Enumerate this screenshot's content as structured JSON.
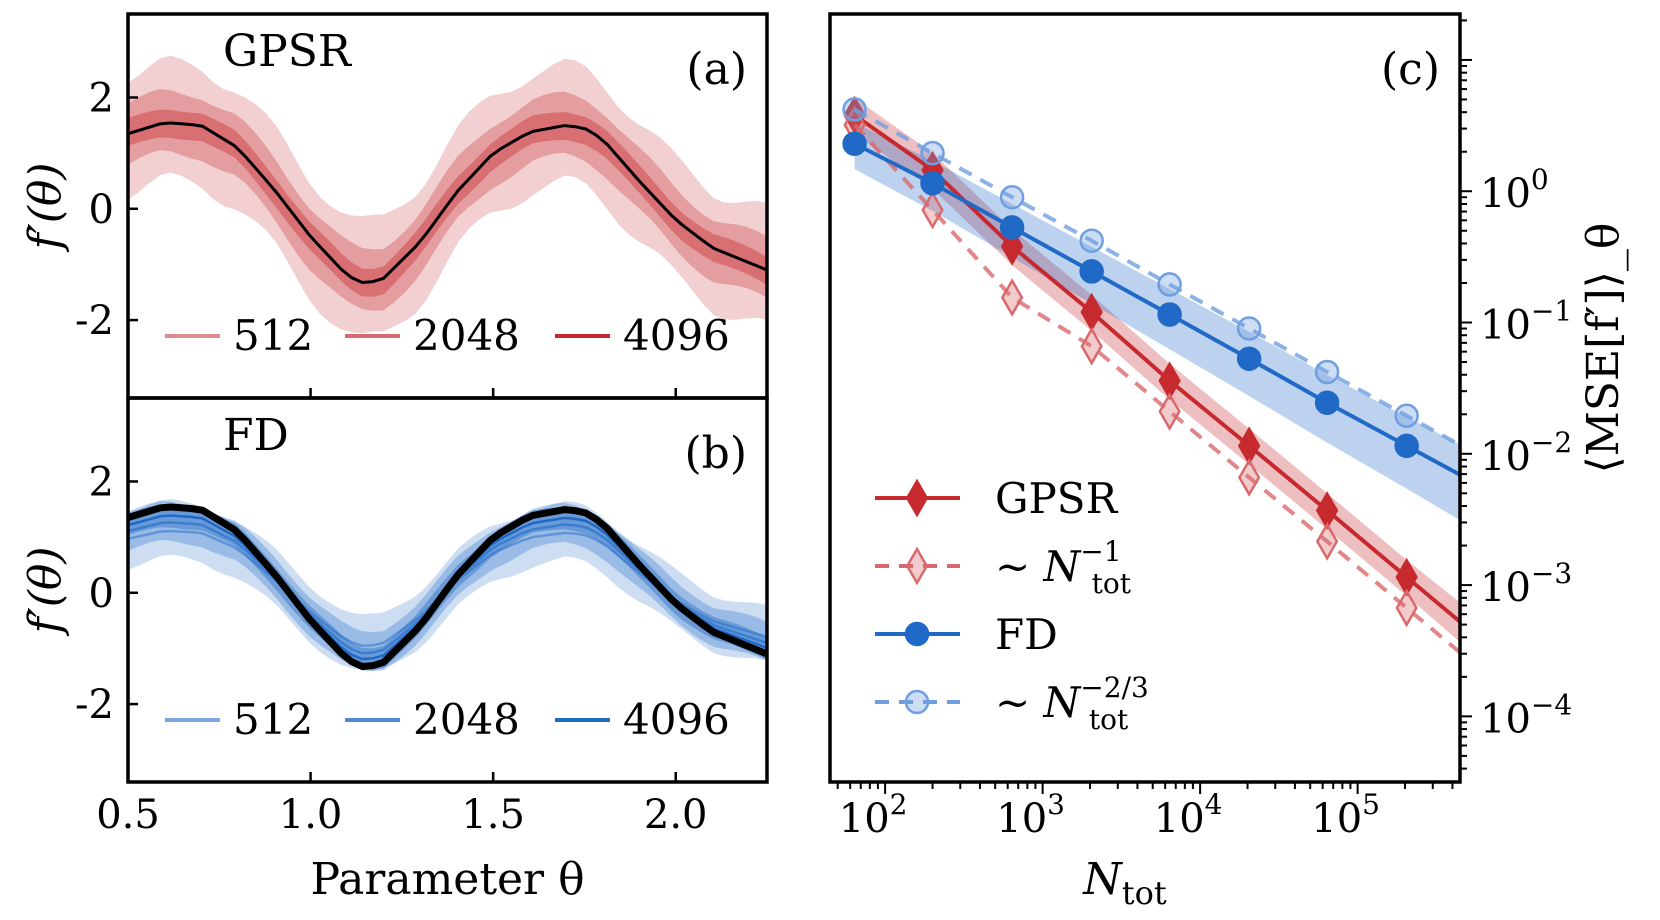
{
  "chart_data": [
    {
      "id": "a",
      "type": "line",
      "panel_label": "(a)",
      "title": "GPSR",
      "xlabel": "",
      "ylabel": "f′(θ)",
      "xlim": [
        0.5,
        2.25
      ],
      "ylim": [
        -3.4,
        3.5
      ],
      "xticks": [
        0.5,
        1.0,
        1.5,
        2.0
      ],
      "xtick_labels": [
        "",
        "",
        "",
        ""
      ],
      "yticks": [
        -2,
        0,
        2
      ],
      "ytick_labels": [
        "-2",
        "0",
        "2"
      ],
      "color": "#c62a2f",
      "true_curve": {
        "x": [
          0.5,
          0.6,
          0.7,
          0.8,
          0.9,
          1.0,
          1.1,
          1.15,
          1.2,
          1.3,
          1.4,
          1.5,
          1.6,
          1.7,
          1.75,
          1.8,
          1.9,
          2.0,
          2.1,
          2.25
        ],
        "y": [
          1.35,
          1.55,
          1.5,
          1.1,
          0.35,
          -0.5,
          -1.2,
          -1.35,
          -1.25,
          -0.6,
          0.3,
          1.0,
          1.38,
          1.5,
          1.45,
          1.25,
          0.5,
          -0.2,
          -0.7,
          -1.1
        ]
      },
      "series": [
        {
          "name": "512",
          "band_halfwidth": 1.05,
          "opacity": 0.22
        },
        {
          "name": "2048",
          "band_halfwidth": 0.55,
          "opacity": 0.3
        },
        {
          "name": "4096",
          "band_halfwidth": 0.25,
          "opacity": 0.4
        }
      ],
      "legend": [
        "512",
        "2048",
        "4096"
      ],
      "legend_colors": [
        "#e08c8f",
        "#d9696d",
        "#c62a2f"
      ]
    },
    {
      "id": "b",
      "type": "line",
      "panel_label": "(b)",
      "title": "FD",
      "xlabel": "Parameter θ",
      "ylabel": "f′(θ)",
      "xlim": [
        0.5,
        2.25
      ],
      "ylim": [
        -3.4,
        3.5
      ],
      "xticks": [
        0.5,
        1.0,
        1.5,
        2.0
      ],
      "xtick_labels": [
        "0.5",
        "1.0",
        "1.5",
        "2.0"
      ],
      "yticks": [
        -2,
        0,
        2
      ],
      "ytick_labels": [
        "-2",
        "0",
        "2"
      ],
      "color": "#2069c6",
      "true_curve": {
        "x": [
          0.5,
          0.6,
          0.7,
          0.8,
          0.9,
          1.0,
          1.1,
          1.15,
          1.2,
          1.3,
          1.4,
          1.5,
          1.6,
          1.7,
          1.75,
          1.8,
          1.9,
          2.0,
          2.1,
          2.25
        ],
        "y": [
          1.35,
          1.55,
          1.5,
          1.1,
          0.35,
          -0.5,
          -1.2,
          -1.35,
          -1.25,
          -0.6,
          0.3,
          1.0,
          1.38,
          1.5,
          1.45,
          1.25,
          0.5,
          -0.2,
          -0.7,
          -1.1
        ]
      },
      "series": [
        {
          "name": "512",
          "band_halfwidth": 0.5,
          "opacity": 0.22,
          "shrink": 0.72
        },
        {
          "name": "2048",
          "band_halfwidth": 0.35,
          "opacity": 0.3,
          "shrink": 0.82
        },
        {
          "name": "4096",
          "band_halfwidth": 0.2,
          "opacity": 0.4,
          "shrink": 0.9
        }
      ],
      "legend": [
        "512",
        "2048",
        "4096"
      ],
      "legend_colors": [
        "#7ba6e0",
        "#4d8ad6",
        "#2069c6"
      ]
    },
    {
      "id": "c",
      "type": "line",
      "panel_label": "(c)",
      "title": "",
      "xlabel": "N_tot",
      "ylabel": "⟨MSE[f′]⟩_θ",
      "xscale": "log",
      "yscale": "log",
      "xlim_log10": [
        1.65,
        5.65
      ],
      "ylim_log10": [
        -4.5,
        1.35
      ],
      "xticks_log10": [
        2,
        3,
        4,
        5
      ],
      "xtick_labels": [
        "10",
        "10",
        "10",
        "10"
      ],
      "xtick_exponents": [
        "2",
        "3",
        "4",
        "5"
      ],
      "yticks_log10": [
        0,
        -1,
        -2,
        -3,
        -4
      ],
      "ytick_labels": [
        "10",
        "10",
        "10",
        "10",
        "10"
      ],
      "ytick_exponents": [
        "0",
        "−1",
        "−2",
        "−3",
        "−4"
      ],
      "x": [
        64,
        200,
        640,
        2048,
        6400,
        20480,
        64000,
        204800
      ],
      "series": [
        {
          "name": "GPSR",
          "style": "solid",
          "marker": "diamond",
          "color": "#c62a2f",
          "values": [
            3.8,
            1.45,
            0.38,
            0.12,
            0.036,
            0.0115,
            0.0037,
            0.00115
          ]
        },
        {
          "name": "~ N_tot^-1",
          "style": "dashed",
          "marker": "diamond-open",
          "color": "#d9696d",
          "values": [
            3.2,
            0.72,
            0.155,
            0.066,
            0.021,
            0.0066,
            0.00215,
            0.00067
          ]
        },
        {
          "name": "FD",
          "style": "solid",
          "marker": "circle",
          "color": "#2069c6",
          "values": [
            2.3,
            1.15,
            0.53,
            0.245,
            0.115,
            0.053,
            0.0245,
            0.0115
          ]
        },
        {
          "name": "~ N_tot^-2/3",
          "style": "dashed",
          "marker": "circle-open",
          "color": "#6f9fe0",
          "values": [
            4.2,
            1.95,
            0.9,
            0.42,
            0.195,
            0.09,
            0.042,
            0.0195
          ]
        }
      ],
      "legend": [
        {
          "label": "GPSR",
          "prefix": ""
        },
        {
          "label": "N",
          "prefix": "~ ",
          "sub": "tot",
          "sup": "−1"
        },
        {
          "label": "FD",
          "prefix": ""
        },
        {
          "label": "N",
          "prefix": "~ ",
          "sub": "tot",
          "sup": "−2/3"
        }
      ]
    }
  ]
}
